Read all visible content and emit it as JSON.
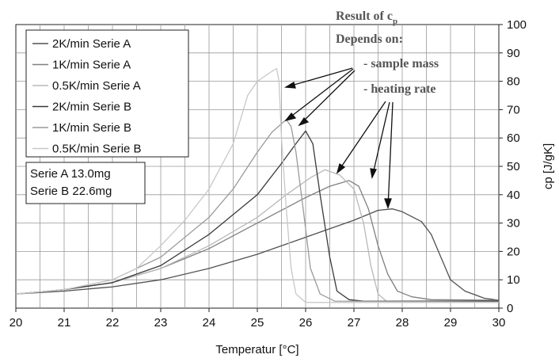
{
  "chart_data": {
    "type": "line",
    "xlabel": "Temperatur [°C]",
    "ylabel": "cp [J/gK]",
    "xlim": [
      20,
      30
    ],
    "ylim": [
      0,
      100
    ],
    "x_ticks": [
      "20",
      "21",
      "22",
      "23",
      "24",
      "25",
      "26",
      "27",
      "28",
      "29",
      "30"
    ],
    "y_ticks": [
      "0",
      "10",
      "20",
      "30",
      "40",
      "50",
      "60",
      "70",
      "80",
      "90",
      "100"
    ],
    "grid": true,
    "legend_position": "top-left",
    "series": [
      {
        "name": "2K/min Serie A",
        "color": "#505050",
        "points": [
          [
            20,
            5
          ],
          [
            21,
            6
          ],
          [
            22,
            7.5
          ],
          [
            23,
            10
          ],
          [
            24,
            14
          ],
          [
            25,
            19
          ],
          [
            26,
            25
          ],
          [
            26.5,
            28
          ],
          [
            27,
            31
          ],
          [
            27.5,
            34.5
          ],
          [
            27.8,
            35
          ],
          [
            28,
            34
          ],
          [
            28.4,
            30.5
          ],
          [
            28.6,
            26
          ],
          [
            28.8,
            18
          ],
          [
            29,
            10
          ],
          [
            29.3,
            6
          ],
          [
            29.7,
            3.5
          ],
          [
            30,
            2.8
          ]
        ]
      },
      {
        "name": "1K/min Serie A",
        "color": "#808080",
        "points": [
          [
            20,
            5
          ],
          [
            21,
            6.5
          ],
          [
            22,
            9
          ],
          [
            23,
            14
          ],
          [
            24,
            21
          ],
          [
            25,
            30
          ],
          [
            26,
            39
          ],
          [
            26.5,
            43
          ],
          [
            26.9,
            45
          ],
          [
            27.1,
            43
          ],
          [
            27.3,
            35
          ],
          [
            27.5,
            22
          ],
          [
            27.7,
            12
          ],
          [
            27.9,
            6
          ],
          [
            28.2,
            4
          ],
          [
            28.6,
            3
          ],
          [
            30,
            2.8
          ]
        ]
      },
      {
        "name": "0.5K/min Serie A",
        "color": "#b8b8b8",
        "points": [
          [
            20,
            5
          ],
          [
            21,
            6.5
          ],
          [
            22,
            9
          ],
          [
            23,
            14
          ],
          [
            24,
            22
          ],
          [
            25,
            32
          ],
          [
            25.6,
            40
          ],
          [
            26.1,
            46
          ],
          [
            26.4,
            48.8
          ],
          [
            26.7,
            47
          ],
          [
            27,
            42
          ],
          [
            27.2,
            30
          ],
          [
            27.35,
            15
          ],
          [
            27.5,
            5
          ],
          [
            27.7,
            2
          ],
          [
            30,
            2
          ]
        ]
      },
      {
        "name": "2K/min Serie B",
        "color": "#3a3a3a",
        "points": [
          [
            20,
            5
          ],
          [
            21,
            6.5
          ],
          [
            22,
            9
          ],
          [
            23,
            15
          ],
          [
            24,
            26
          ],
          [
            25,
            40
          ],
          [
            25.5,
            51
          ],
          [
            25.8,
            58
          ],
          [
            26,
            62.5
          ],
          [
            26.15,
            58
          ],
          [
            26.3,
            40
          ],
          [
            26.5,
            18
          ],
          [
            26.65,
            6
          ],
          [
            26.9,
            3
          ],
          [
            27.2,
            2.5
          ],
          [
            30,
            2.5
          ]
        ]
      },
      {
        "name": "1K/min Serie B",
        "color": "#9a9a9a",
        "points": [
          [
            20,
            5
          ],
          [
            21,
            6.5
          ],
          [
            22,
            10
          ],
          [
            23,
            18
          ],
          [
            24,
            32
          ],
          [
            24.5,
            42
          ],
          [
            25,
            55
          ],
          [
            25.3,
            62
          ],
          [
            25.5,
            65
          ],
          [
            25.6,
            66.5
          ],
          [
            25.7,
            64
          ],
          [
            25.8,
            55
          ],
          [
            25.95,
            35
          ],
          [
            26.1,
            14
          ],
          [
            26.3,
            5
          ],
          [
            26.6,
            2.5
          ],
          [
            30,
            2.2
          ]
        ]
      },
      {
        "name": "0.5K/min Serie B",
        "color": "#c8c8c8",
        "points": [
          [
            20,
            5
          ],
          [
            21,
            6.5
          ],
          [
            22,
            10
          ],
          [
            22.5,
            14
          ],
          [
            23,
            22
          ],
          [
            23.5,
            31
          ],
          [
            24,
            42
          ],
          [
            24.5,
            58
          ],
          [
            24.8,
            75
          ],
          [
            25,
            80
          ],
          [
            25.3,
            83.5
          ],
          [
            25.4,
            84.5
          ],
          [
            25.45,
            80
          ],
          [
            25.5,
            60
          ],
          [
            25.6,
            35
          ],
          [
            25.7,
            14
          ],
          [
            25.8,
            5
          ],
          [
            26,
            2
          ],
          [
            30,
            2
          ]
        ]
      }
    ],
    "note": [
      "Serie A 13.0mg",
      "Serie B 22.6mg"
    ],
    "annotation": {
      "title": "Result of c",
      "title_sub": "p",
      "line2": "Depends on:",
      "items": [
        "- sample mass",
        "- heating rate"
      ]
    }
  }
}
